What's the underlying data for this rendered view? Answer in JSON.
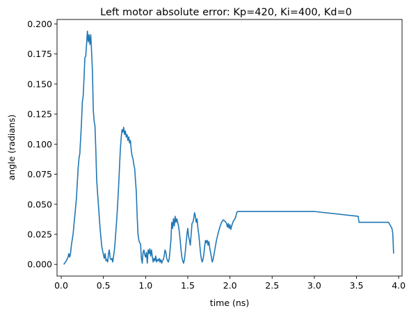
{
  "chart_data": {
    "type": "line",
    "title": "Left motor absolute error: Kp=420, Ki=400, Kd=0",
    "xlabel": "time (ns)",
    "ylabel": "angle (radians)",
    "xlim": [
      -0.05,
      4.04
    ],
    "ylim": [
      -0.0097,
      0.2037
    ],
    "xticks": [
      0.0,
      0.5,
      1.0,
      1.5,
      2.0,
      2.5,
      3.0,
      3.5,
      4.0
    ],
    "xtick_labels": [
      "0.0",
      "0.5",
      "1.0",
      "1.5",
      "2.0",
      "2.5",
      "3.0",
      "3.5",
      "4.0"
    ],
    "yticks": [
      0.0,
      0.025,
      0.05,
      0.075,
      0.1,
      0.125,
      0.15,
      0.175,
      0.2
    ],
    "ytick_labels": [
      "0.000",
      "0.025",
      "0.050",
      "0.075",
      "0.100",
      "0.125",
      "0.150",
      "0.175",
      "0.200"
    ],
    "grid": false,
    "colors": {
      "line": "#1f77b4",
      "axes": "#000000",
      "background": "#ffffff"
    },
    "series": [
      {
        "x": [
          0.03,
          0.06,
          0.08,
          0.09,
          0.1,
          0.11,
          0.12,
          0.14,
          0.16,
          0.18,
          0.2,
          0.21,
          0.22,
          0.23,
          0.24,
          0.25,
          0.26,
          0.27,
          0.28,
          0.29,
          0.3,
          0.31,
          0.32,
          0.33,
          0.34,
          0.35,
          0.36,
          0.37,
          0.38,
          0.39,
          0.4,
          0.41,
          0.42,
          0.44,
          0.46,
          0.48,
          0.5,
          0.51,
          0.52,
          0.53,
          0.54,
          0.55,
          0.56,
          0.57,
          0.58,
          0.59,
          0.6,
          0.61,
          0.62,
          0.63,
          0.64,
          0.65,
          0.66,
          0.67,
          0.68,
          0.69,
          0.7,
          0.71,
          0.72,
          0.73,
          0.74,
          0.75,
          0.76,
          0.77,
          0.78,
          0.79,
          0.8,
          0.81,
          0.82,
          0.83,
          0.84,
          0.85,
          0.86,
          0.87,
          0.88,
          0.89,
          0.9,
          0.91,
          0.92,
          0.93,
          0.94,
          0.95,
          0.96,
          0.97,
          0.98,
          0.99,
          1.0,
          1.01,
          1.02,
          1.03,
          1.04,
          1.05,
          1.06,
          1.07,
          1.08,
          1.09,
          1.1,
          1.11,
          1.12,
          1.13,
          1.14,
          1.15,
          1.16,
          1.17,
          1.18,
          1.19,
          1.2,
          1.21,
          1.22,
          1.23,
          1.24,
          1.25,
          1.26,
          1.27,
          1.28,
          1.29,
          1.3,
          1.31,
          1.32,
          1.33,
          1.34,
          1.35,
          1.36,
          1.37,
          1.38,
          1.39,
          1.4,
          1.41,
          1.42,
          1.43,
          1.44,
          1.45,
          1.46,
          1.47,
          1.48,
          1.49,
          1.5,
          1.51,
          1.52,
          1.53,
          1.54,
          1.55,
          1.56,
          1.57,
          1.58,
          1.59,
          1.6,
          1.61,
          1.62,
          1.63,
          1.64,
          1.65,
          1.66,
          1.67,
          1.68,
          1.69,
          1.7,
          1.71,
          1.72,
          1.73,
          1.74,
          1.75,
          1.76,
          1.77,
          1.78,
          1.79,
          1.8,
          1.82,
          1.84,
          1.86,
          1.88,
          1.9,
          1.92,
          1.94,
          1.96,
          1.97,
          1.98,
          1.99,
          2.0,
          2.01,
          2.02,
          2.03,
          2.04,
          2.05,
          2.06,
          2.07,
          2.08,
          2.09,
          2.1,
          2.5,
          3.0,
          3.52,
          3.53,
          3.54,
          3.7,
          3.88,
          3.92,
          3.93,
          3.94
        ],
        "y": [
          0.0,
          0.003,
          0.006,
          0.009,
          0.006,
          0.009,
          0.016,
          0.025,
          0.04,
          0.055,
          0.08,
          0.088,
          0.092,
          0.105,
          0.118,
          0.135,
          0.14,
          0.155,
          0.172,
          0.173,
          0.183,
          0.194,
          0.185,
          0.191,
          0.183,
          0.191,
          0.176,
          0.16,
          0.128,
          0.119,
          0.115,
          0.095,
          0.07,
          0.05,
          0.03,
          0.015,
          0.008,
          0.005,
          0.009,
          0.003,
          0.004,
          0.002,
          0.009,
          0.012,
          0.005,
          0.004,
          0.005,
          0.002,
          0.007,
          0.012,
          0.02,
          0.03,
          0.04,
          0.052,
          0.065,
          0.08,
          0.095,
          0.105,
          0.112,
          0.11,
          0.114,
          0.108,
          0.111,
          0.106,
          0.108,
          0.103,
          0.106,
          0.101,
          0.103,
          0.095,
          0.09,
          0.088,
          0.083,
          0.08,
          0.07,
          0.06,
          0.04,
          0.025,
          0.02,
          0.018,
          0.017,
          0.005,
          0.001,
          0.01,
          0.012,
          0.008,
          0.006,
          0.01,
          0.001,
          0.012,
          0.009,
          0.013,
          0.007,
          0.012,
          0.006,
          0.002,
          0.005,
          0.003,
          0.007,
          0.002,
          0.004,
          0.003,
          0.005,
          0.002,
          0.004,
          0.001,
          0.003,
          0.004,
          0.007,
          0.012,
          0.01,
          0.005,
          0.003,
          0.002,
          0.005,
          0.012,
          0.02,
          0.035,
          0.03,
          0.038,
          0.032,
          0.04,
          0.035,
          0.038,
          0.035,
          0.032,
          0.027,
          0.02,
          0.012,
          0.006,
          0.003,
          0.001,
          0.004,
          0.01,
          0.018,
          0.025,
          0.03,
          0.023,
          0.02,
          0.016,
          0.025,
          0.034,
          0.035,
          0.038,
          0.043,
          0.04,
          0.035,
          0.038,
          0.03,
          0.025,
          0.018,
          0.01,
          0.005,
          0.002,
          0.004,
          0.008,
          0.015,
          0.02,
          0.018,
          0.02,
          0.016,
          0.019,
          0.014,
          0.01,
          0.006,
          0.002,
          0.004,
          0.012,
          0.02,
          0.026,
          0.031,
          0.035,
          0.037,
          0.036,
          0.034,
          0.031,
          0.034,
          0.03,
          0.033,
          0.029,
          0.032,
          0.034,
          0.036,
          0.037,
          0.038,
          0.04,
          0.043,
          0.044,
          0.044,
          0.044,
          0.044,
          0.04,
          0.035,
          0.035,
          0.035,
          0.035,
          0.03,
          0.026,
          0.009
        ]
      }
    ]
  }
}
